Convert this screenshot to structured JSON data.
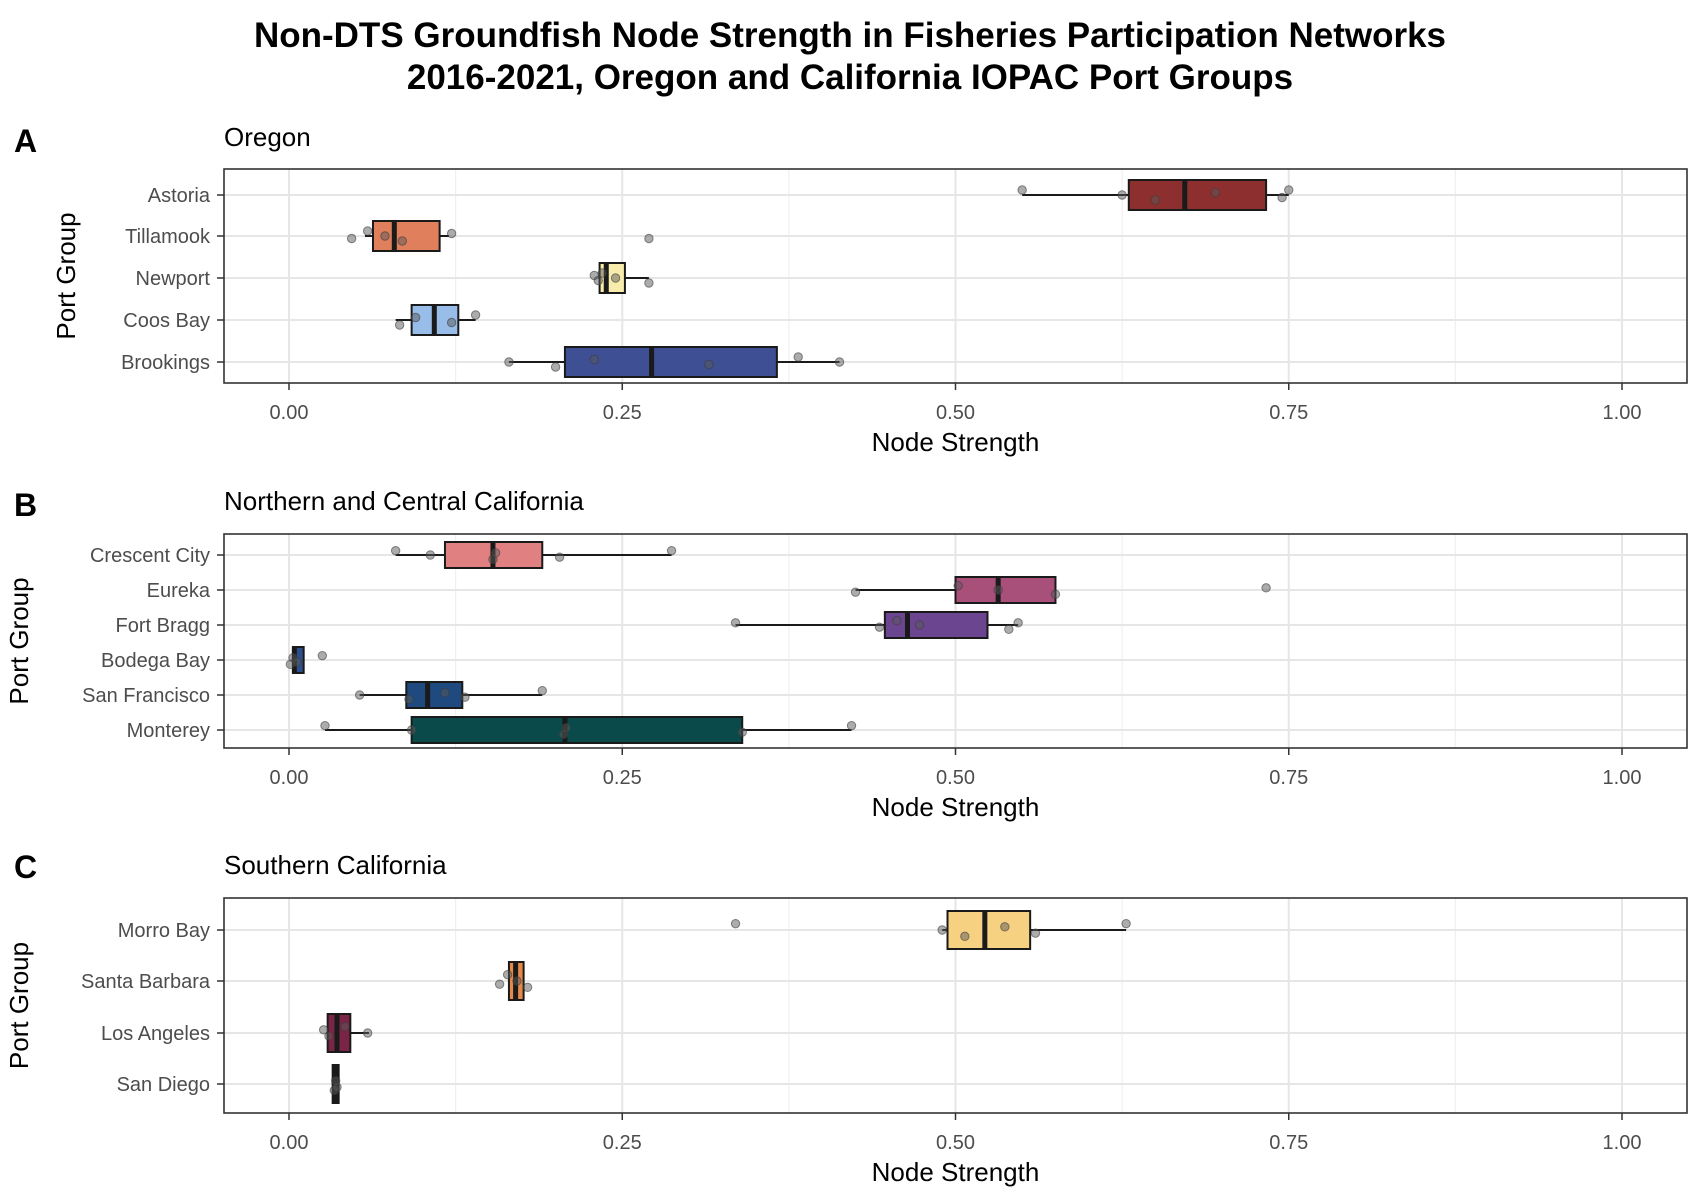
{
  "chart_data": {
    "title": [
      "Non-DTS Groundfish Node Strength in Fisheries Participation Networks",
      "2016-2021, Oregon and California IOPAC Port Groups"
    ],
    "panels": [
      {
        "type": "boxplot",
        "letter": "A",
        "subtitle": "Oregon",
        "xlabel": "Node Strength",
        "ylabel": "Port Group",
        "xlim": [
          0,
          1
        ],
        "x_ticks": [
          "0.00",
          "0.25",
          "0.50",
          "0.75",
          "1.00"
        ],
        "grid": true,
        "categories": [
          "Astoria",
          "Tillamook",
          "Newport",
          "Coos Bay",
          "Brookings"
        ],
        "boxes": [
          {
            "name": "Astoria",
            "color": "#8e2f2f",
            "min": 0.55,
            "q1": 0.63,
            "median": 0.672,
            "q3": 0.733,
            "max": 0.75,
            "points": [
              0.55,
              0.625,
              0.65,
              0.695,
              0.745,
              0.75
            ]
          },
          {
            "name": "Tillamook",
            "color": "#e07f5c",
            "min": 0.057,
            "q1": 0.063,
            "median": 0.079,
            "q3": 0.113,
            "max": 0.12,
            "points": [
              0.047,
              0.059,
              0.072,
              0.085,
              0.122,
              0.27
            ]
          },
          {
            "name": "Newport",
            "color": "#f8ecac",
            "min": 0.232,
            "q1": 0.233,
            "median": 0.238,
            "q3": 0.252,
            "max": 0.27,
            "points": [
              0.229,
              0.232,
              0.235,
              0.245,
              0.27
            ]
          },
          {
            "name": "Coos Bay",
            "color": "#98bde8",
            "min": 0.08,
            "q1": 0.092,
            "median": 0.109,
            "q3": 0.127,
            "max": 0.14,
            "points": [
              0.083,
              0.095,
              0.122,
              0.14
            ]
          },
          {
            "name": "Brookings",
            "color": "#3e4f93",
            "min": 0.165,
            "q1": 0.207,
            "median": 0.272,
            "q3": 0.366,
            "max": 0.413,
            "points": [
              0.165,
              0.2,
              0.229,
              0.315,
              0.382,
              0.413
            ]
          }
        ]
      },
      {
        "type": "boxplot",
        "letter": "B",
        "subtitle": "Northern and Central California",
        "xlabel": "Node Strength",
        "ylabel": "Port Group",
        "xlim": [
          0,
          1
        ],
        "x_ticks": [
          "0.00",
          "0.25",
          "0.50",
          "0.75",
          "1.00"
        ],
        "grid": true,
        "categories": [
          "Crescent City",
          "Eureka",
          "Fort Bragg",
          "Bodega Bay",
          "San Francisco",
          "Monterey"
        ],
        "boxes": [
          {
            "name": "Crescent City",
            "color": "#e08080",
            "min": 0.08,
            "q1": 0.117,
            "median": 0.153,
            "q3": 0.19,
            "max": 0.287,
            "points": [
              0.08,
              0.106,
              0.153,
              0.155,
              0.203,
              0.287
            ]
          },
          {
            "name": "Eureka",
            "color": "#a84f7a",
            "min": 0.425,
            "q1": 0.5,
            "median": 0.532,
            "q3": 0.575,
            "max": 0.575,
            "points": [
              0.425,
              0.502,
              0.532,
              0.575,
              0.733
            ]
          },
          {
            "name": "Fort Bragg",
            "color": "#6b4590",
            "min": 0.335,
            "q1": 0.447,
            "median": 0.464,
            "q3": 0.524,
            "max": 0.547,
            "points": [
              0.335,
              0.443,
              0.456,
              0.473,
              0.54,
              0.547
            ]
          },
          {
            "name": "Bodega Bay",
            "color": "#2f4f8c",
            "min": 0.002,
            "q1": 0.003,
            "median": 0.004,
            "q3": 0.011,
            "max": 0.011,
            "points": [
              0.001,
              0.003,
              0.006,
              0.025
            ]
          },
          {
            "name": "San Francisco",
            "color": "#1f4a7f",
            "min": 0.053,
            "q1": 0.088,
            "median": 0.104,
            "q3": 0.13,
            "max": 0.19,
            "points": [
              0.053,
              0.09,
              0.117,
              0.132,
              0.19
            ]
          },
          {
            "name": "Monterey",
            "color": "#0b4a4a",
            "min": 0.027,
            "q1": 0.092,
            "median": 0.207,
            "q3": 0.34,
            "max": 0.422,
            "points": [
              0.027,
              0.092,
              0.206,
              0.208,
              0.34,
              0.422
            ]
          }
        ]
      },
      {
        "type": "boxplot",
        "letter": "C",
        "subtitle": "Southern California",
        "xlabel": "Node Strength",
        "ylabel": "Port Group",
        "xlim": [
          0,
          1
        ],
        "x_ticks": [
          "0.00",
          "0.25",
          "0.50",
          "0.75",
          "1.00"
        ],
        "grid": true,
        "categories": [
          "Morro Bay",
          "Santa Barbara",
          "Los Angeles",
          "San Diego"
        ],
        "boxes": [
          {
            "name": "Morro Bay",
            "color": "#f6d182",
            "min": 0.49,
            "q1": 0.494,
            "median": 0.522,
            "q3": 0.556,
            "max": 0.628,
            "points": [
              0.335,
              0.49,
              0.507,
              0.537,
              0.56,
              0.628
            ]
          },
          {
            "name": "Santa Barbara",
            "color": "#e38a4a",
            "min": 0.165,
            "q1": 0.165,
            "median": 0.17,
            "q3": 0.176,
            "max": 0.176,
            "points": [
              0.158,
              0.164,
              0.171,
              0.179
            ]
          },
          {
            "name": "Los Angeles",
            "color": "#7a2545",
            "min": 0.028,
            "q1": 0.029,
            "median": 0.036,
            "q3": 0.046,
            "max": 0.06,
            "points": [
              0.026,
              0.03,
              0.042,
              0.059
            ]
          },
          {
            "name": "San Diego",
            "color": "#3a3a3a",
            "min": 0.034,
            "q1": 0.034,
            "median": 0.035,
            "q3": 0.036,
            "max": 0.036,
            "points": [
              0.034,
              0.035,
              0.036
            ]
          }
        ]
      }
    ]
  }
}
